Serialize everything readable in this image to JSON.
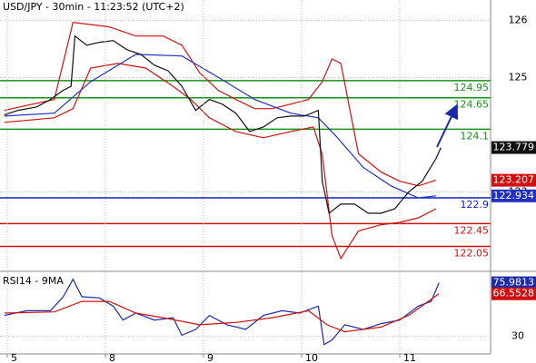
{
  "chart_data": [
    {
      "type": "line",
      "title": "USD/JPY - 30min - 11:23:52 (UTC+2)",
      "xlim": [
        -0.074,
        4.926
      ],
      "ylim": [
        121.63,
        126.36
      ],
      "yticks": [
        123,
        125,
        126
      ],
      "series": [
        {
          "name": "Upper band",
          "color": "#d01010",
          "x": [
            -0.03,
            0.48,
            0.67,
            1.04,
            1.31,
            1.59,
            1.78,
            1.96,
            2.15,
            2.33,
            2.52,
            2.7,
            2.89,
            3.07,
            3.21,
            3.31,
            3.4,
            3.49,
            3.58,
            3.81,
            4.0,
            4.19,
            4.37
          ],
          "values": [
            124.43,
            124.62,
            125.97,
            125.89,
            125.73,
            125.73,
            125.57,
            125.09,
            124.78,
            124.62,
            124.46,
            124.46,
            124.54,
            124.62,
            124.93,
            125.33,
            125.25,
            124.46,
            123.67,
            123.35,
            123.19,
            123.11,
            123.207
          ]
        },
        {
          "name": "Lower band",
          "color": "#d01010",
          "x": [
            -0.03,
            0.48,
            0.67,
            0.85,
            1.13,
            1.41,
            1.69,
            1.87,
            2.06,
            2.33,
            2.61,
            2.89,
            3.12,
            3.21,
            3.31,
            3.4,
            3.49,
            3.58,
            3.81,
            4.0,
            4.19,
            4.37
          ],
          "values": [
            124.22,
            124.3,
            124.46,
            125.17,
            125.25,
            125.17,
            124.85,
            124.62,
            124.3,
            124.06,
            123.95,
            124.06,
            124.14,
            123.66,
            122.24,
            121.84,
            122.08,
            122.32,
            122.43,
            122.47,
            122.55,
            122.71
          ]
        },
        {
          "name": "Moving average",
          "color": "#2030c0",
          "x": [
            -0.03,
            0.48,
            0.85,
            1.31,
            1.78,
            2.15,
            2.52,
            2.89,
            3.17,
            3.35,
            3.63,
            3.91,
            4.19,
            4.37
          ],
          "values": [
            124.33,
            124.38,
            124.93,
            125.41,
            125.38,
            125.01,
            124.62,
            124.38,
            124.3,
            123.98,
            123.43,
            123.11,
            122.9,
            122.934
          ]
        },
        {
          "name": "USD/JPY",
          "color": "#111111",
          "x": [
            -0.03,
            0.11,
            0.3,
            0.44,
            0.57,
            0.65,
            0.69,
            0.81,
            0.94,
            1.08,
            1.22,
            1.36,
            1.5,
            1.64,
            1.78,
            1.92,
            2.06,
            2.19,
            2.33,
            2.47,
            2.61,
            2.75,
            2.89,
            3.03,
            3.17,
            3.21,
            3.28,
            3.4,
            3.54,
            3.68,
            3.81,
            3.95,
            4.09,
            4.23,
            4.37,
            4.42
          ],
          "values": [
            124.35,
            124.43,
            124.49,
            124.62,
            124.78,
            124.85,
            125.73,
            125.57,
            125.62,
            125.65,
            125.49,
            125.41,
            125.22,
            125.12,
            124.85,
            124.43,
            124.62,
            124.54,
            124.38,
            124.06,
            124.14,
            124.3,
            124.33,
            124.33,
            124.43,
            123.19,
            122.63,
            122.79,
            122.79,
            122.63,
            122.63,
            122.71,
            123.0,
            123.19,
            123.59,
            123.779
          ]
        }
      ],
      "tags": [
        3,
        0,
        2
      ],
      "levels": [
        {
          "value": 124.95,
          "color": "#189018"
        },
        {
          "value": 124.65,
          "color": "#189018"
        },
        {
          "value": 124.1,
          "color": "#189018"
        },
        {
          "value": 122.9,
          "color": "#1020c0"
        },
        {
          "value": 122.45,
          "color": "#d01010"
        },
        {
          "value": 122.05,
          "color": "#d01010"
        }
      ]
    },
    {
      "type": "line",
      "title": "RSI14 - 9MA",
      "xlim": [
        -0.074,
        4.926
      ],
      "ylim": [
        15,
        85
      ],
      "yticks": [
        30
      ],
      "xticks": [
        {
          "value": 0,
          "label": "5"
        },
        {
          "value": 1,
          "label": "8"
        },
        {
          "value": 2,
          "label": "9"
        },
        {
          "value": 3,
          "label": "10"
        },
        {
          "value": 4,
          "label": "11"
        }
      ],
      "series": [
        {
          "name": "RSI14",
          "color": "#1a2aa8",
          "x": [
            -0.03,
            0.2,
            0.44,
            0.57,
            0.67,
            0.76,
            0.94,
            1.08,
            1.18,
            1.31,
            1.5,
            1.69,
            1.78,
            1.92,
            2.06,
            2.24,
            2.43,
            2.61,
            2.8,
            2.98,
            3.17,
            3.23,
            3.31,
            3.44,
            3.63,
            3.81,
            4.0,
            4.19,
            4.32,
            4.4
          ],
          "values": [
            48,
            52,
            52,
            64,
            79,
            64,
            63,
            56,
            44,
            50,
            44,
            46,
            31,
            36,
            48,
            40,
            36,
            48,
            52,
            50,
            56,
            23,
            27,
            40,
            36,
            41,
            44,
            56,
            60,
            75.9813
          ]
        },
        {
          "name": "9MA",
          "color": "#d01010",
          "x": [
            -0.03,
            0.48,
            0.76,
            1.04,
            1.31,
            1.59,
            1.96,
            2.33,
            2.7,
            3.07,
            3.26,
            3.44,
            3.81,
            4.09,
            4.4
          ],
          "values": [
            50,
            51,
            60,
            60,
            50,
            46,
            40,
            42,
            46,
            52,
            40,
            34,
            38,
            48,
            66.5528
          ]
        }
      ],
      "tags": [
        0,
        1
      ]
    }
  ]
}
